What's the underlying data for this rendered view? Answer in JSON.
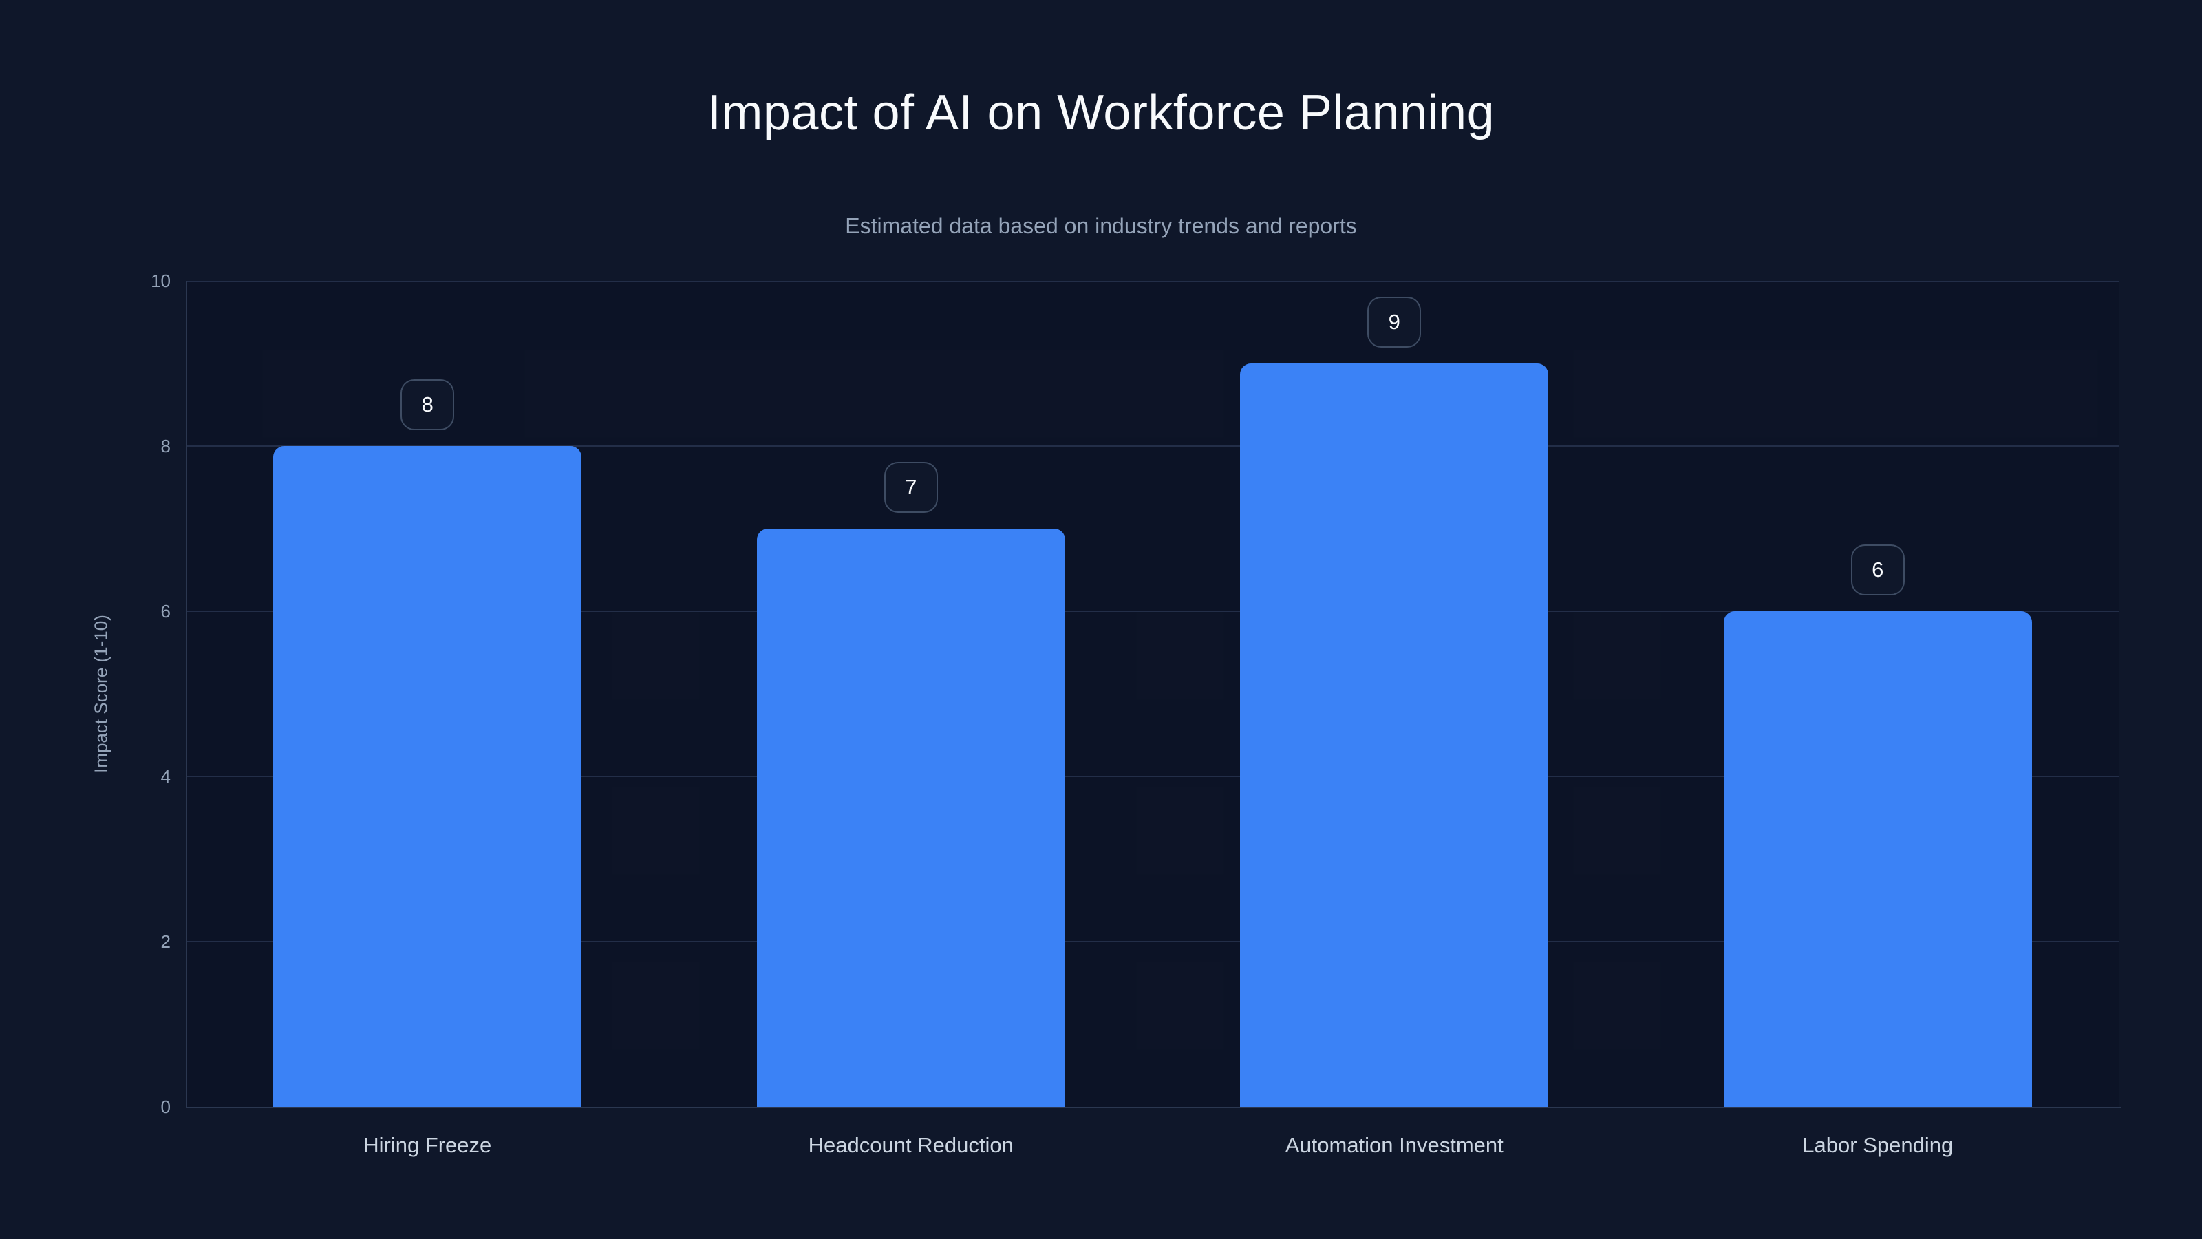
{
  "page": {
    "title": "Impact of AI on Workforce Planning",
    "subtitle": "Estimated data based on industry trends and reports"
  },
  "chart_data": {
    "type": "bar",
    "title": "Impact of AI on Workforce Planning",
    "subtitle": "Estimated data based on industry trends and reports",
    "categories": [
      "Hiring Freeze",
      "Headcount Reduction",
      "Automation Investment",
      "Labor Spending"
    ],
    "values": [
      8,
      7,
      9,
      6
    ],
    "value_labels": [
      "8",
      "7",
      "9",
      "6"
    ],
    "xlabel": "",
    "ylabel": "Impact Score (1-10)",
    "ylim": [
      0,
      10
    ],
    "yticks": [
      0,
      2,
      4,
      6,
      8,
      10
    ],
    "grid": "horizontal",
    "legend": "none",
    "colors": {
      "background": "#0f172a",
      "bar": "#3b82f6",
      "gridline": "#232e48",
      "axis_line": "#2b3750",
      "title_text": "#f8fafc",
      "subtitle_text": "#94a3b8",
      "tick_text": "#94a3b8",
      "category_text": "#cbd5e1",
      "badge_border": "#3e4c63",
      "badge_text": "#f8fafc"
    }
  }
}
